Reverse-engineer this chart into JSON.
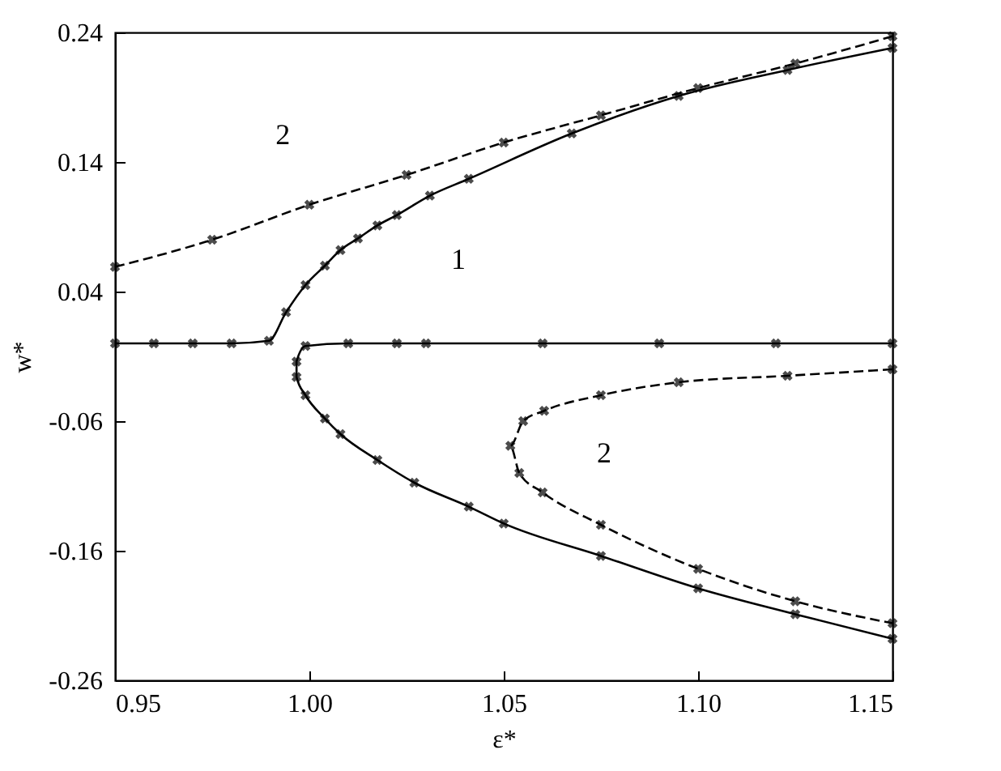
{
  "chart_data": {
    "type": "line",
    "xlabel": "ε*",
    "ylabel": "w*",
    "xlim": [
      0.95,
      1.15
    ],
    "ylim": [
      -0.26,
      0.24
    ],
    "xticks": [
      {
        "value": 0.95,
        "label": "0.95"
      },
      {
        "value": 1.0,
        "label": "1.00"
      },
      {
        "value": 1.05,
        "label": "1.05"
      },
      {
        "value": 1.1,
        "label": "1.10"
      },
      {
        "value": 1.15,
        "label": "1.15"
      }
    ],
    "yticks": [
      -0.26,
      -0.16,
      -0.06,
      0.04,
      0.14,
      0.24
    ],
    "grid": false,
    "marker": "cross",
    "series": [
      {
        "color": "#000000",
        "line_style": "dashed",
        "x": [
          0.95,
          0.975,
          1.0,
          1.025,
          1.05,
          1.075,
          1.1,
          1.125,
          1.15
        ],
        "values": [
          0.059,
          0.08,
          0.107,
          0.13,
          0.155,
          0.176,
          0.197,
          0.216,
          0.237
        ]
      },
      {
        "color": "#000000",
        "line_style": "solid",
        "x": [
          0.95,
          0.96,
          0.97,
          0.98,
          0.9896,
          0.994,
          0.999,
          1.004,
          1.008,
          1.0125,
          1.0175,
          1.0225,
          1.031,
          1.041,
          1.0675,
          1.095,
          1.123,
          1.15
        ],
        "values": [
          0.0,
          0.0,
          0.0,
          0.0,
          0.002,
          0.024,
          0.045,
          0.06,
          0.072,
          0.081,
          0.091,
          0.099,
          0.114,
          0.127,
          0.162,
          0.191,
          0.211,
          0.228
        ]
      },
      {
        "color": "#000000",
        "line_style": "solid",
        "x": [
          1.15,
          1.12,
          1.09,
          1.06,
          1.03,
          1.0225,
          1.01,
          0.999,
          0.9967,
          0.9967,
          0.999,
          1.004,
          1.008,
          1.0175,
          1.027,
          1.041,
          1.05,
          1.075,
          1.1,
          1.125,
          1.15
        ],
        "values": [
          0.0,
          0.0,
          0.0,
          0.0,
          0.0,
          0.0,
          0.0,
          -0.002,
          -0.014,
          -0.026,
          -0.04,
          -0.058,
          -0.07,
          -0.09,
          -0.1075,
          -0.126,
          -0.139,
          -0.164,
          -0.189,
          -0.209,
          -0.228
        ]
      },
      {
        "color": "#000000",
        "line_style": "dashed",
        "x": [
          1.15,
          1.123,
          1.095,
          1.075,
          1.0604,
          1.055,
          1.0517,
          1.054,
          1.06,
          1.075,
          1.1,
          1.125,
          1.15
        ],
        "values": [
          -0.02,
          -0.025,
          -0.03,
          -0.04,
          -0.052,
          -0.06,
          -0.079,
          -0.1,
          -0.115,
          -0.14,
          -0.174,
          -0.199,
          -0.216
        ]
      }
    ],
    "annotations": [
      {
        "text": "2",
        "x": 1.004,
        "y": 0.1125
      },
      {
        "text": "1",
        "x": 1.0225,
        "y": 0.099
      },
      {
        "text": "2",
        "x": 1.0604,
        "y": -0.052
      }
    ]
  }
}
